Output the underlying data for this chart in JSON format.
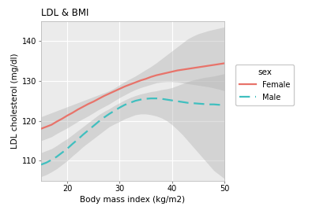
{
  "title": "LDL & BMI",
  "xlabel": "Body mass index (kg/m2)",
  "ylabel": "LDL cholesterol (mg/dl)",
  "xlim": [
    15,
    50
  ],
  "ylim": [
    105,
    145
  ],
  "xticks": [
    20,
    30,
    40,
    50
  ],
  "yticks": [
    110,
    120,
    130,
    140
  ],
  "legend_title": "sex",
  "legend_entries": [
    "Female",
    "Male"
  ],
  "female_color": "#E8736A",
  "male_color": "#40BFBF",
  "ci_color": "#B0B0B0",
  "bg_color": "#FFFFFF",
  "panel_bg": "#EBEBEB",
  "grid_color": "#FFFFFF",
  "female_x": [
    15,
    16,
    17,
    18,
    19,
    20,
    21,
    22,
    23,
    24,
    25,
    26,
    27,
    28,
    29,
    30,
    31,
    32,
    33,
    34,
    35,
    36,
    37,
    38,
    39,
    40,
    41,
    42,
    43,
    44,
    45,
    46,
    47,
    48,
    49,
    50
  ],
  "female_y": [
    118.0,
    118.5,
    119.0,
    119.8,
    120.5,
    121.3,
    122.0,
    122.8,
    123.5,
    124.2,
    124.8,
    125.5,
    126.2,
    126.8,
    127.4,
    128.0,
    128.6,
    129.1,
    129.6,
    130.1,
    130.5,
    131.0,
    131.4,
    131.7,
    132.0,
    132.3,
    132.6,
    132.8,
    133.0,
    133.2,
    133.4,
    133.6,
    133.8,
    134.0,
    134.2,
    134.4
  ],
  "female_ci_upper": [
    121.0,
    121.5,
    122.0,
    122.5,
    123.0,
    123.5,
    124.0,
    124.5,
    125.0,
    125.5,
    126.0,
    126.5,
    127.0,
    127.5,
    128.2,
    129.0,
    129.8,
    130.5,
    131.2,
    132.0,
    132.8,
    133.6,
    134.5,
    135.5,
    136.5,
    137.5,
    138.5,
    139.5,
    140.5,
    141.2,
    141.8,
    142.2,
    142.6,
    142.9,
    143.2,
    143.5
  ],
  "female_ci_lower": [
    115.0,
    115.5,
    116.0,
    116.8,
    117.5,
    118.2,
    119.0,
    119.8,
    120.5,
    121.2,
    122.0,
    122.8,
    123.5,
    124.2,
    125.0,
    125.8,
    126.5,
    127.2,
    127.8,
    128.3,
    128.7,
    129.1,
    129.5,
    129.7,
    129.8,
    129.8,
    129.7,
    129.5,
    129.3,
    129.1,
    128.9,
    128.7,
    128.5,
    128.2,
    127.9,
    127.5
  ],
  "male_x": [
    15,
    16,
    17,
    18,
    19,
    20,
    21,
    22,
    23,
    24,
    25,
    26,
    27,
    28,
    29,
    30,
    31,
    32,
    33,
    34,
    35,
    36,
    37,
    38,
    39,
    40,
    41,
    42,
    43,
    44,
    45,
    46,
    47,
    48,
    49,
    50
  ],
  "male_y": [
    109.0,
    109.5,
    110.2,
    111.0,
    112.0,
    113.0,
    114.2,
    115.3,
    116.5,
    117.6,
    118.7,
    119.8,
    120.8,
    121.7,
    122.5,
    123.3,
    124.0,
    124.5,
    125.0,
    125.3,
    125.5,
    125.6,
    125.6,
    125.5,
    125.3,
    125.1,
    124.9,
    124.7,
    124.5,
    124.4,
    124.3,
    124.2,
    124.1,
    124.1,
    124.0,
    124.0
  ],
  "male_ci_upper": [
    112.0,
    112.5,
    113.0,
    113.8,
    114.7,
    115.5,
    116.5,
    117.5,
    118.5,
    119.5,
    120.5,
    121.5,
    122.3,
    123.0,
    123.8,
    124.5,
    125.2,
    125.8,
    126.3,
    126.7,
    127.0,
    127.3,
    127.5,
    127.8,
    128.0,
    128.3,
    128.8,
    129.3,
    129.8,
    130.2,
    130.5,
    130.8,
    131.0,
    131.2,
    131.5,
    131.8
  ],
  "male_ci_lower": [
    106.0,
    106.5,
    107.2,
    108.0,
    109.0,
    110.0,
    111.2,
    112.3,
    113.5,
    114.5,
    115.5,
    116.5,
    117.5,
    118.5,
    119.2,
    119.8,
    120.5,
    121.0,
    121.5,
    121.7,
    121.7,
    121.5,
    121.2,
    120.7,
    120.0,
    119.0,
    117.8,
    116.5,
    115.0,
    113.5,
    112.0,
    110.5,
    109.0,
    107.5,
    106.5,
    105.5
  ]
}
